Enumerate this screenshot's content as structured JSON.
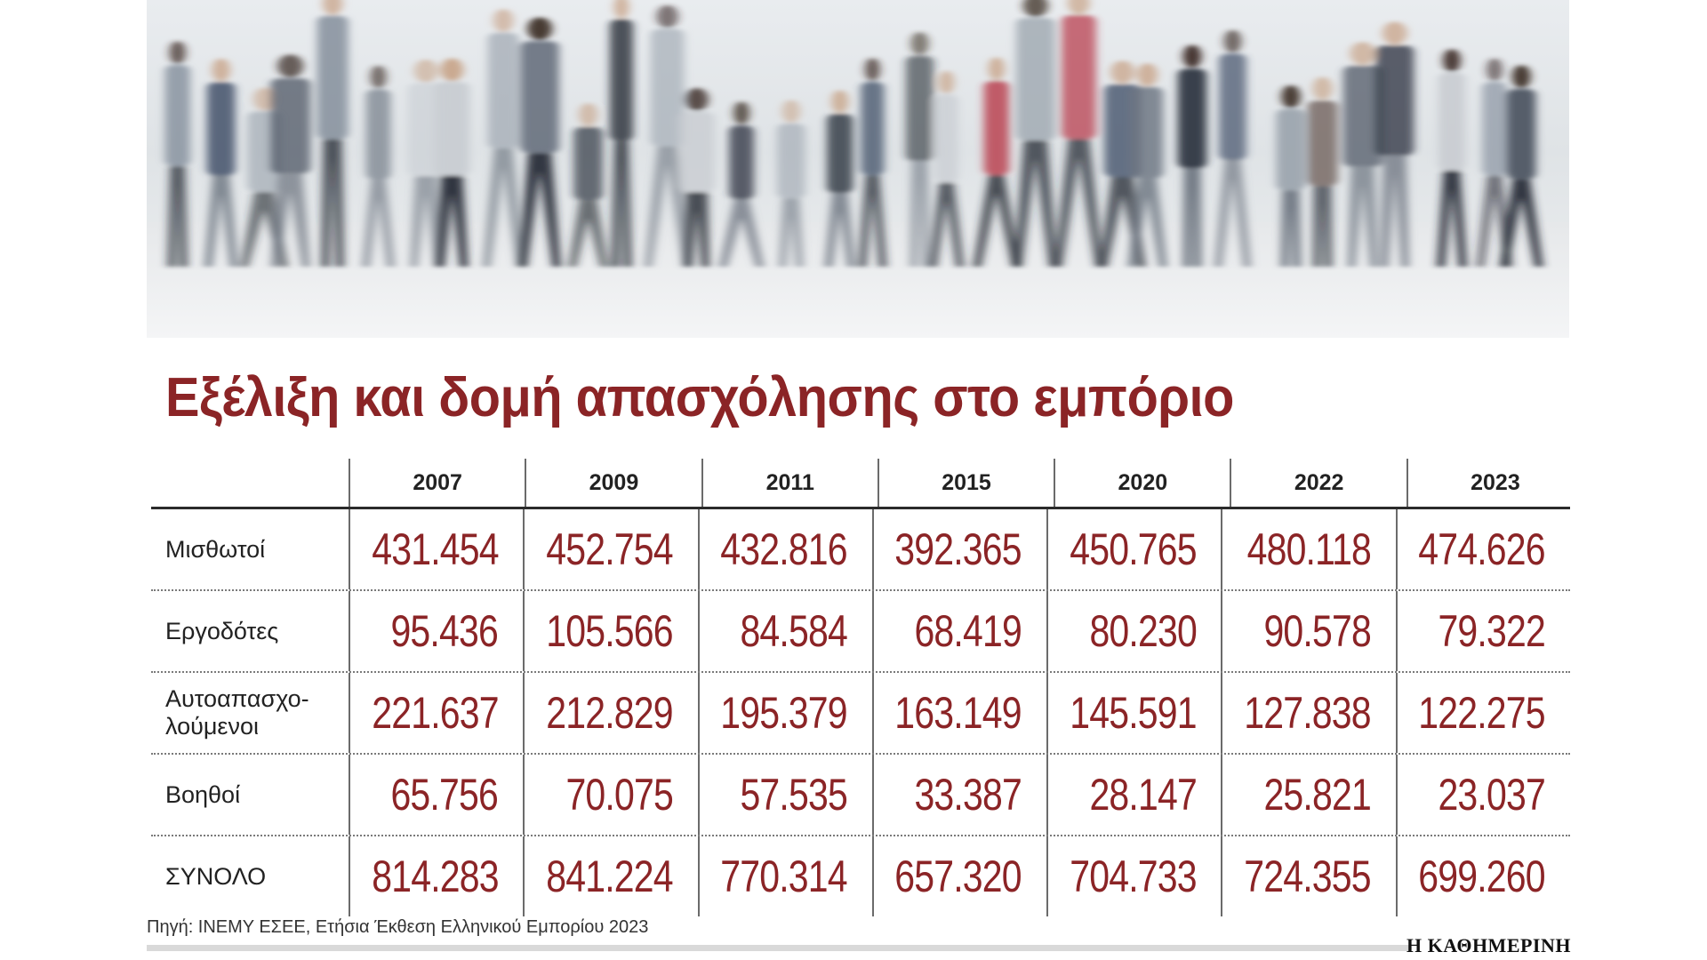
{
  "chart_data": {
    "type": "table",
    "title": "Εξέλιξη και δομή απασχόλησης στο εμπόριο",
    "columns": [
      "2007",
      "2009",
      "2011",
      "2015",
      "2020",
      "2022",
      "2023"
    ],
    "rows": [
      {
        "label": "Μισθωτοί",
        "values": [
          "431.454",
          "452.754",
          "432.816",
          "392.365",
          "450.765",
          "480.118",
          "474.626"
        ]
      },
      {
        "label": "Εργοδότες",
        "values": [
          "95.436",
          "105.566",
          "84.584",
          "68.419",
          "80.230",
          "90.578",
          "79.322"
        ]
      },
      {
        "label": "Αυτοαπασχο-\nλούμενοι",
        "values": [
          "221.637",
          "212.829",
          "195.379",
          "163.149",
          "145.591",
          "127.838",
          "122.275"
        ]
      },
      {
        "label": "Βοηθοί",
        "values": [
          "65.756",
          "70.075",
          "57.535",
          "33.387",
          "28.147",
          "25.821",
          "23.037"
        ]
      },
      {
        "label": "ΣΥΝΟΛΟ",
        "values": [
          "814.283",
          "841.224",
          "770.314",
          "657.320",
          "704.733",
          "724.355",
          "699.260"
        ]
      }
    ]
  },
  "source": "Πηγή: ΙΝΕΜΥ ΕΣΕΕ, Ετήσια Έκθεση Ελληνικού Εμπορίου 2023",
  "brand": "Η ΚΑΘΗΜΕΡΙΝΗ",
  "colors": {
    "accent": "#8b2426",
    "text": "#222222",
    "rule": "#2b2b2b"
  }
}
